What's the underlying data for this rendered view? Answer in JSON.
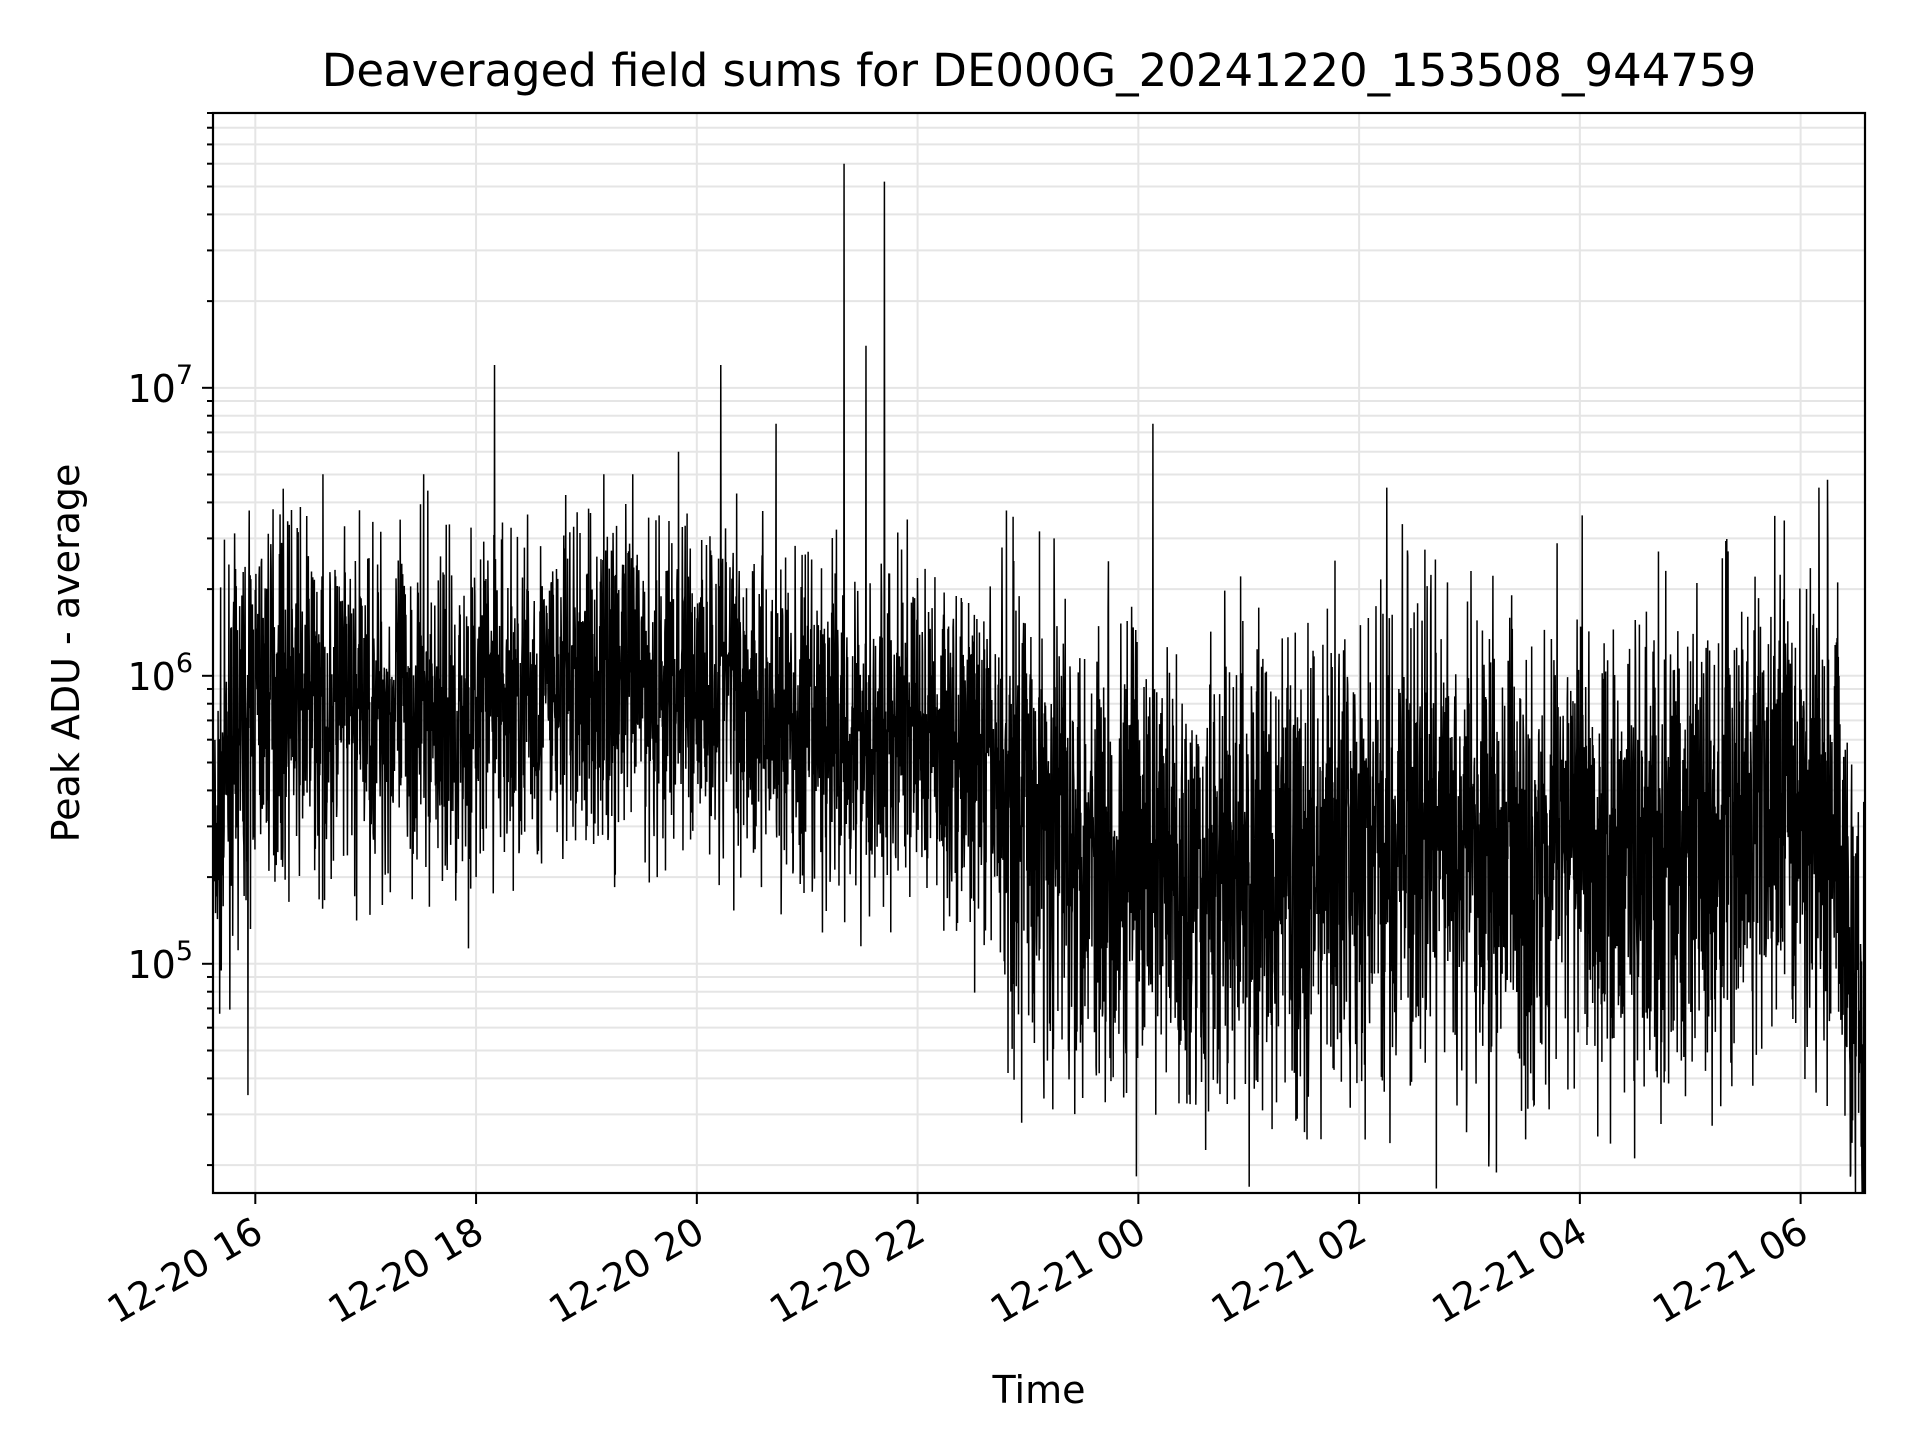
{
  "chart_data": {
    "type": "line",
    "title": "Deaveraged field sums for DE000G_20241220_153508_944759",
    "xlabel": "Time",
    "ylabel": "Peak ADU - average",
    "x_tick_labels": [
      "12-20 16",
      "12-20 18",
      "12-20 20",
      "12-20 22",
      "12-21 00",
      "12-21 02",
      "12-21 04",
      "12-21 06"
    ],
    "y_tick_labels": [
      {
        "base": "10",
        "exp": "5",
        "value": 100000
      },
      {
        "base": "10",
        "exp": "6",
        "value": 1000000
      },
      {
        "base": "10",
        "exp": "7",
        "value": 10000000
      }
    ],
    "xlim": [
      "2024-12-20 15:37",
      "2024-12-21 06:35"
    ],
    "ylim": [
      16000,
      90000000
    ],
    "y_scale": "log",
    "grid": true,
    "line_color": "#000000",
    "grid_color": "#e5e5e5",
    "series": [
      {
        "x": [
          "2024-12-20 15:37",
          "2024-12-20 15:45",
          "2024-12-20 16:00",
          "2024-12-20 16:15",
          "2024-12-20 16:30",
          "2024-12-20 16:45",
          "2024-12-20 17:00",
          "2024-12-20 17:15",
          "2024-12-20 17:30",
          "2024-12-20 17:45",
          "2024-12-20 18:00",
          "2024-12-20 18:10",
          "2024-12-20 18:20",
          "2024-12-20 18:40",
          "2024-12-20 19:00",
          "2024-12-20 19:20",
          "2024-12-20 19:40",
          "2024-12-20 20:00",
          "2024-12-20 20:20",
          "2024-12-20 20:40",
          "2024-12-20 21:00",
          "2024-12-20 21:20",
          "2024-12-20 21:40",
          "2024-12-20 22:00",
          "2024-12-20 22:20",
          "2024-12-20 22:40",
          "2024-12-20 23:00",
          "2024-12-20 23:20",
          "2024-12-20 23:40",
          "2024-12-21 00:00",
          "2024-12-21 00:20",
          "2024-12-21 00:40",
          "2024-12-21 01:00",
          "2024-12-21 01:20",
          "2024-12-21 01:40",
          "2024-12-21 02:00",
          "2024-12-21 02:20",
          "2024-12-21 02:40",
          "2024-12-21 03:00",
          "2024-12-21 03:20",
          "2024-12-21 03:40",
          "2024-12-21 04:00",
          "2024-12-21 04:20",
          "2024-12-21 04:40",
          "2024-12-21 05:00",
          "2024-12-21 05:20",
          "2024-12-21 05:40",
          "2024-12-21 06:00",
          "2024-12-21 06:15",
          "2024-12-21 06:25",
          "2024-12-21 06:35"
        ],
        "y": [
          200000,
          500000,
          850000,
          900000,
          800000,
          750000,
          780000,
          750000,
          800000,
          700000,
          750000,
          900000,
          800000,
          850000,
          950000,
          1000000,
          900000,
          950000,
          1000000,
          750000,
          600000,
          650000,
          600000,
          650000,
          550000,
          450000,
          350000,
          300000,
          250000,
          220000,
          200000,
          200000,
          200000,
          220000,
          230000,
          220000,
          250000,
          280000,
          230000,
          240000,
          260000,
          280000,
          260000,
          220000,
          250000,
          280000,
          350000,
          400000,
          380000,
          200000,
          30000
        ]
      }
    ],
    "spikes": {
      "x": [
        "2024-12-20 15:56",
        "2024-12-20 18:10",
        "2024-12-20 19:50",
        "2024-12-20 20:13",
        "2024-12-20 20:43",
        "2024-12-20 21:20",
        "2024-12-20 21:32",
        "2024-12-20 21:42",
        "2024-12-21 00:08",
        "2024-12-21 02:15",
        "2024-12-21 06:10",
        "2024-12-21 06:35"
      ],
      "y": [
        35000,
        12000000,
        6000000,
        12000000,
        7500000,
        60000000,
        14000000,
        52000000,
        7500000,
        4500000,
        4500000,
        20000
      ]
    }
  }
}
